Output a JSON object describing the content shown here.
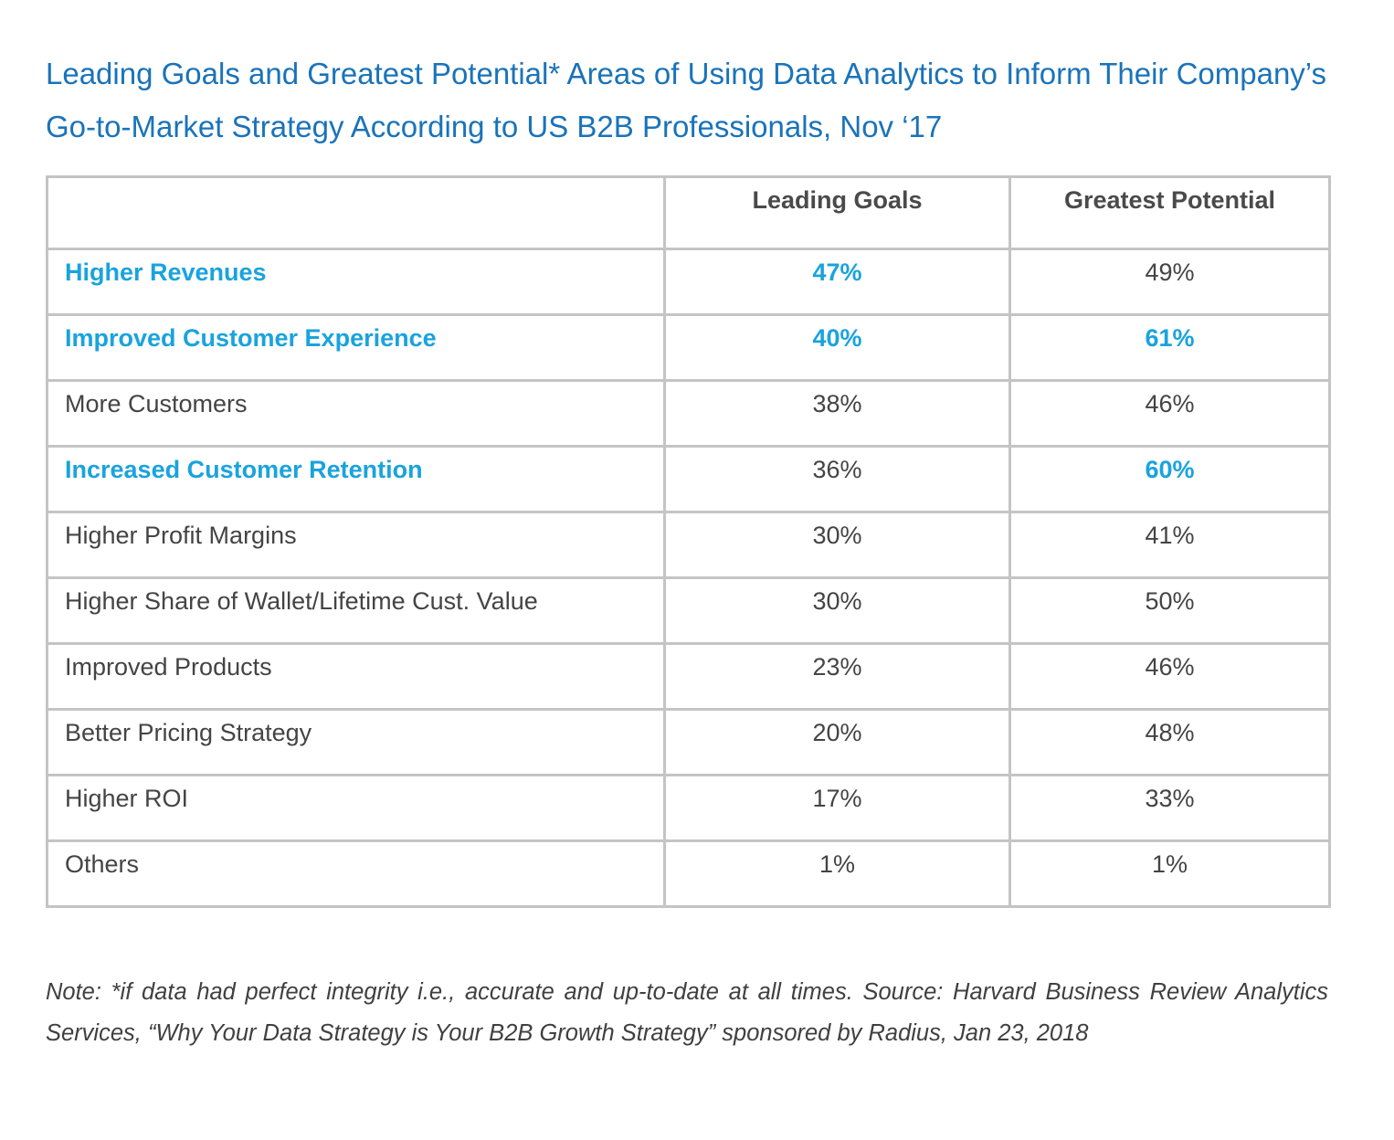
{
  "chart_data": {
    "type": "table",
    "title": "Leading Goals and Greatest Potential* Areas of Using Data Analytics to Inform Their Company’s Go-to-Market Strategy According to US B2B Professionals, Nov ‘17",
    "columns": [
      "",
      "Leading Goals",
      "Greatest Potential"
    ],
    "rows": [
      {
        "label": "Higher Revenues",
        "leading": "47%",
        "potential": "49%",
        "label_hl": true,
        "leading_hl": true,
        "potential_hl": false
      },
      {
        "label": "Improved Customer Experience",
        "leading": "40%",
        "potential": "61%",
        "label_hl": true,
        "leading_hl": true,
        "potential_hl": true
      },
      {
        "label": "More Customers",
        "leading": "38%",
        "potential": "46%",
        "label_hl": false,
        "leading_hl": false,
        "potential_hl": false
      },
      {
        "label": "Increased Customer Retention",
        "leading": "36%",
        "potential": "60%",
        "label_hl": true,
        "leading_hl": false,
        "potential_hl": true
      },
      {
        "label": "Higher Profit Margins",
        "leading": "30%",
        "potential": "41%",
        "label_hl": false,
        "leading_hl": false,
        "potential_hl": false
      },
      {
        "label": "Higher Share of Wallet/Lifetime Cust. Value",
        "leading": "30%",
        "potential": "50%",
        "label_hl": false,
        "leading_hl": false,
        "potential_hl": false
      },
      {
        "label": "Improved Products",
        "leading": "23%",
        "potential": "46%",
        "label_hl": false,
        "leading_hl": false,
        "potential_hl": false
      },
      {
        "label": "Better Pricing Strategy",
        "leading": "20%",
        "potential": "48%",
        "label_hl": false,
        "leading_hl": false,
        "potential_hl": false
      },
      {
        "label": "Higher ROI",
        "leading": "17%",
        "potential": "33%",
        "label_hl": false,
        "leading_hl": false,
        "potential_hl": false
      },
      {
        "label": "Others",
        "leading": "1%",
        "potential": "1%",
        "label_hl": false,
        "leading_hl": false,
        "potential_hl": false
      }
    ],
    "note": "Note: *if data had perfect integrity i.e., accurate and up-to-date at all times. Source: Harvard Business Review Analytics Services, “Why Your Data Strategy is Your B2B Growth Strategy” sponsored by Radius, Jan 23, 2018"
  },
  "colors": {
    "title": "#1a73b9",
    "highlight": "#1aa3dd",
    "text": "#444444",
    "border": "#c4c4c4"
  }
}
